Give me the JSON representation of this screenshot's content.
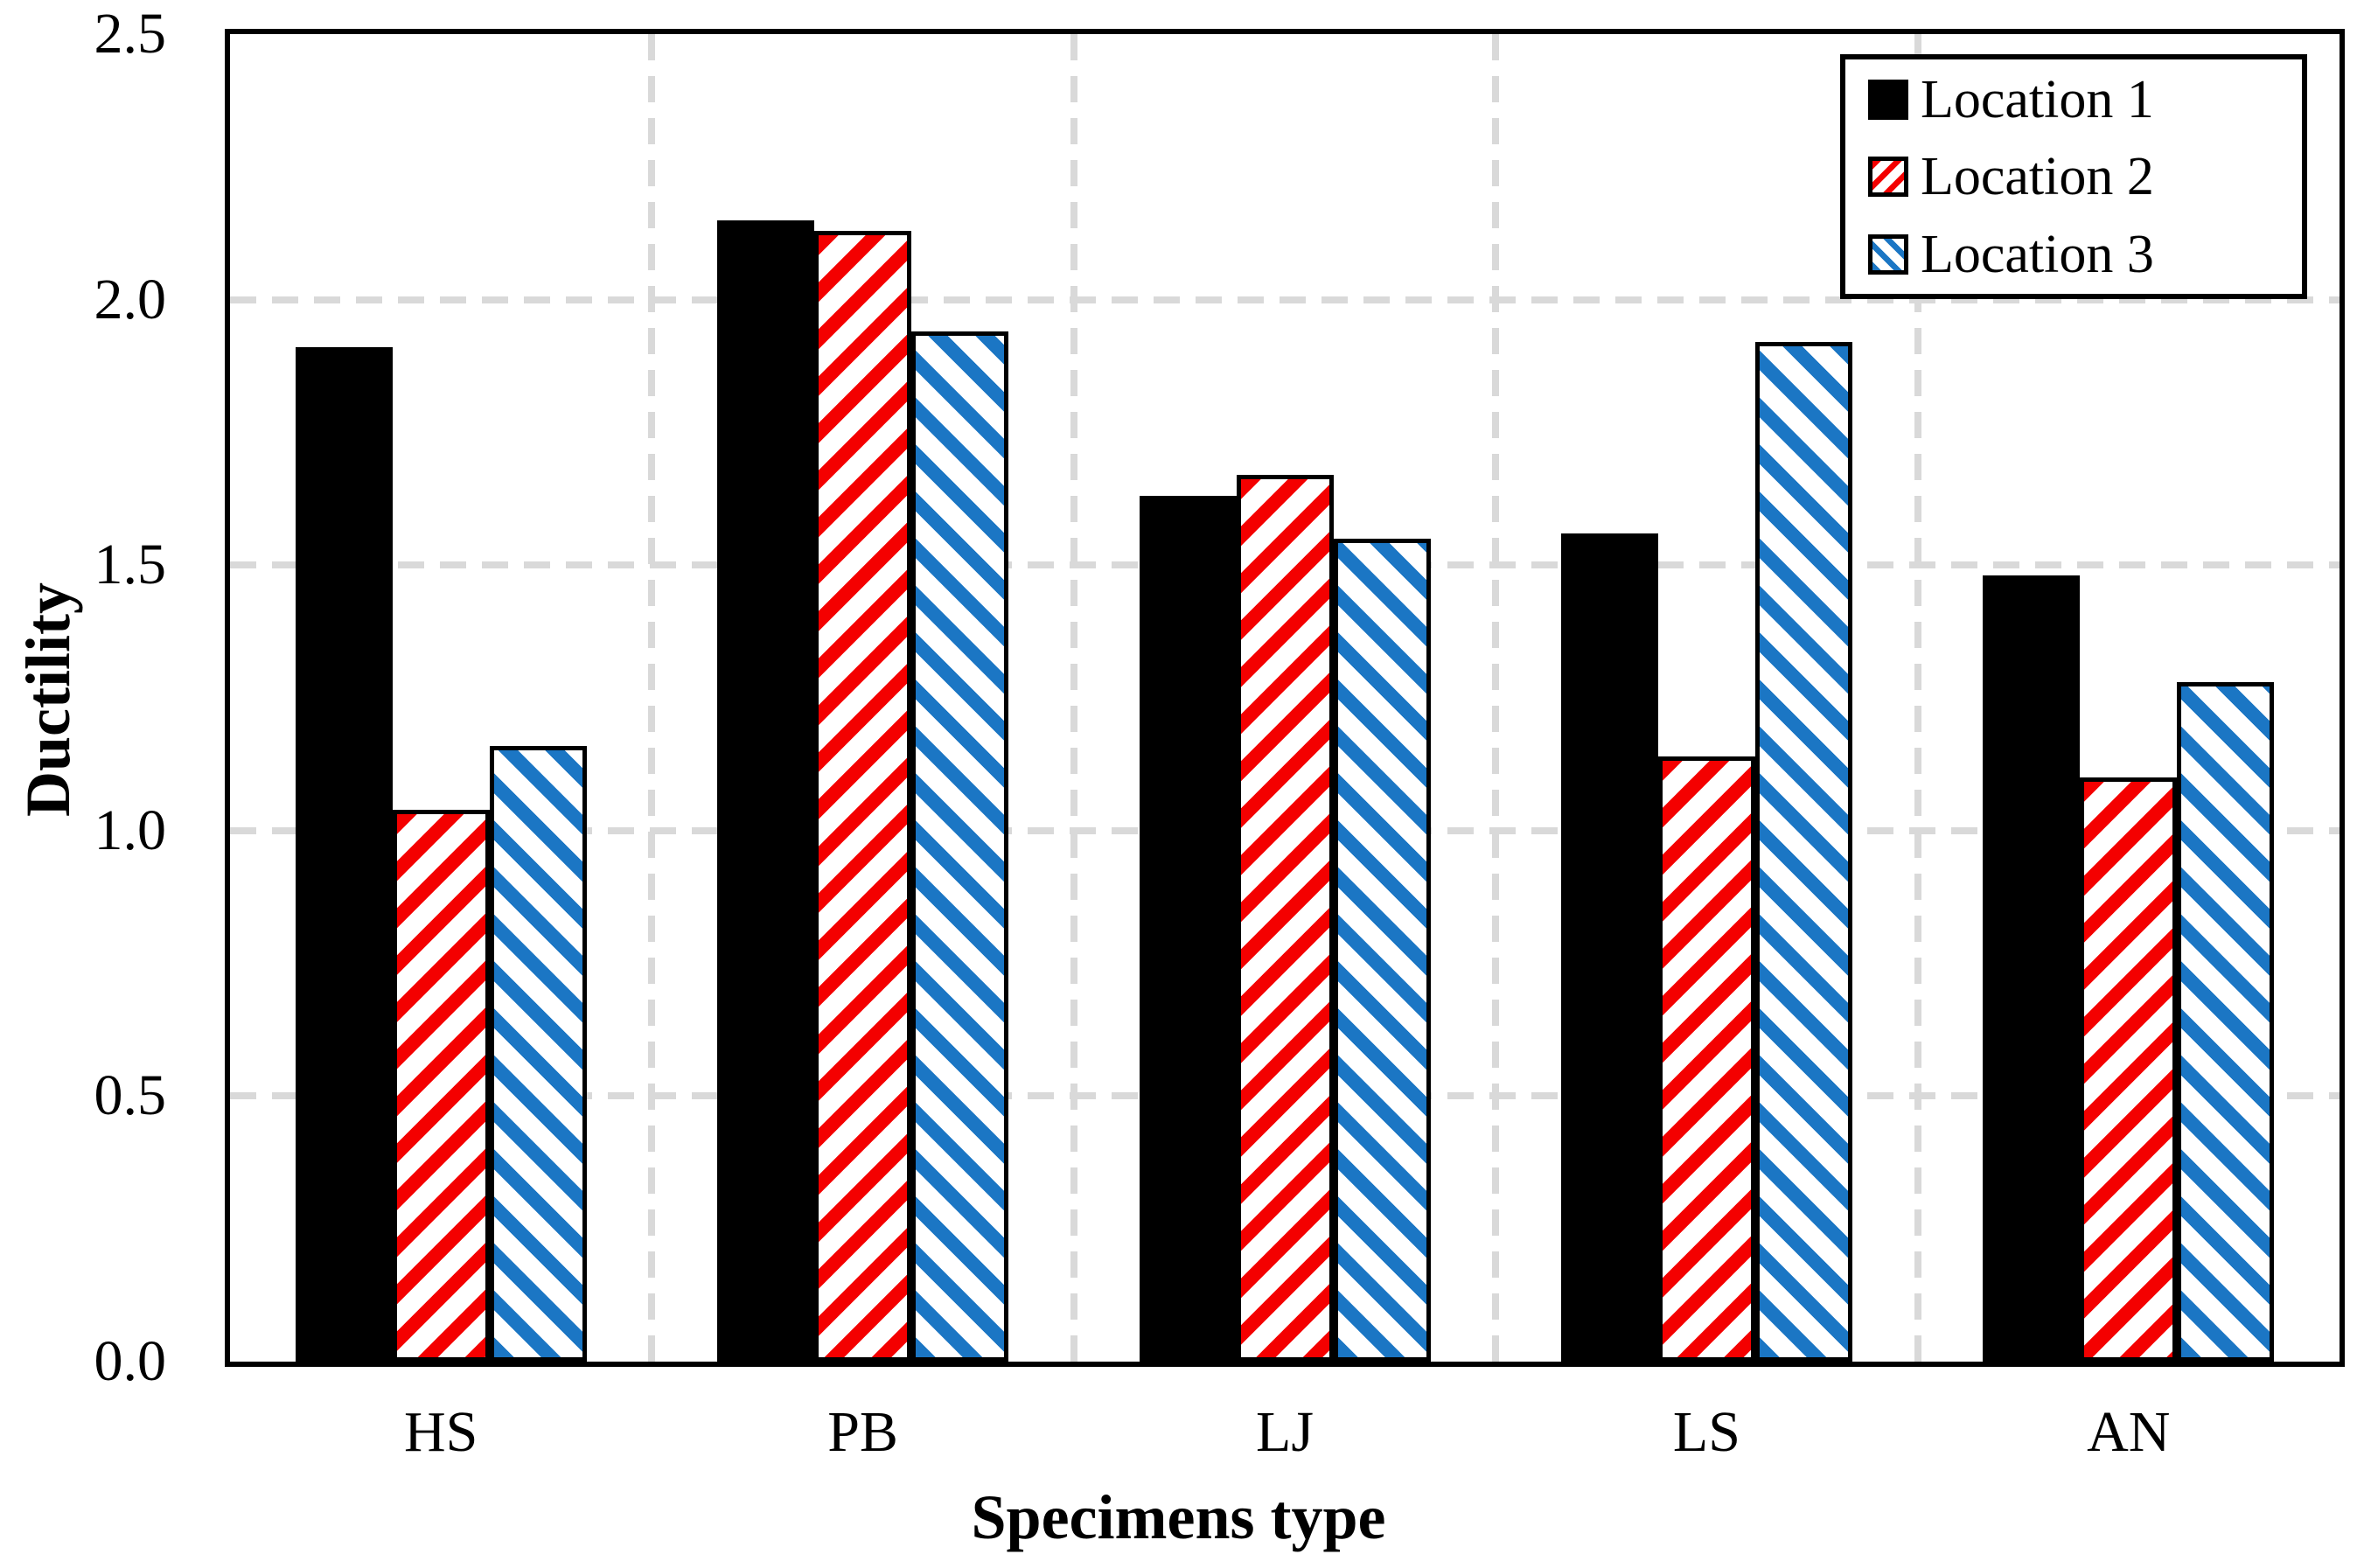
{
  "chart_data": {
    "type": "bar",
    "title": "",
    "categories": [
      "HS",
      "PB",
      "LJ",
      "LS",
      "AN"
    ],
    "series": [
      {
        "name": "Location 1",
        "pattern": "solid",
        "color": "#000000",
        "values": [
          1.91,
          2.15,
          1.63,
          1.56,
          1.48
        ]
      },
      {
        "name": "Location 2",
        "pattern": "hatch-forward",
        "color": "#f40000",
        "values": [
          1.04,
          2.13,
          1.67,
          1.14,
          1.1
        ]
      },
      {
        "name": "Location 3",
        "pattern": "hatch-backward",
        "color": "#1b76c4",
        "values": [
          1.16,
          1.94,
          1.55,
          1.92,
          1.28
        ]
      }
    ],
    "xlabel": "Specimens type",
    "ylabel": "Ductility",
    "ylim": [
      0.0,
      2.5
    ],
    "yticks": [
      "0.0",
      "0.5",
      "1.0",
      "1.5",
      "2.0",
      "2.5"
    ],
    "ytick_step": 0.5,
    "grid": true,
    "gridline_color": "#d9d9d9",
    "legend_position": "top-right"
  }
}
